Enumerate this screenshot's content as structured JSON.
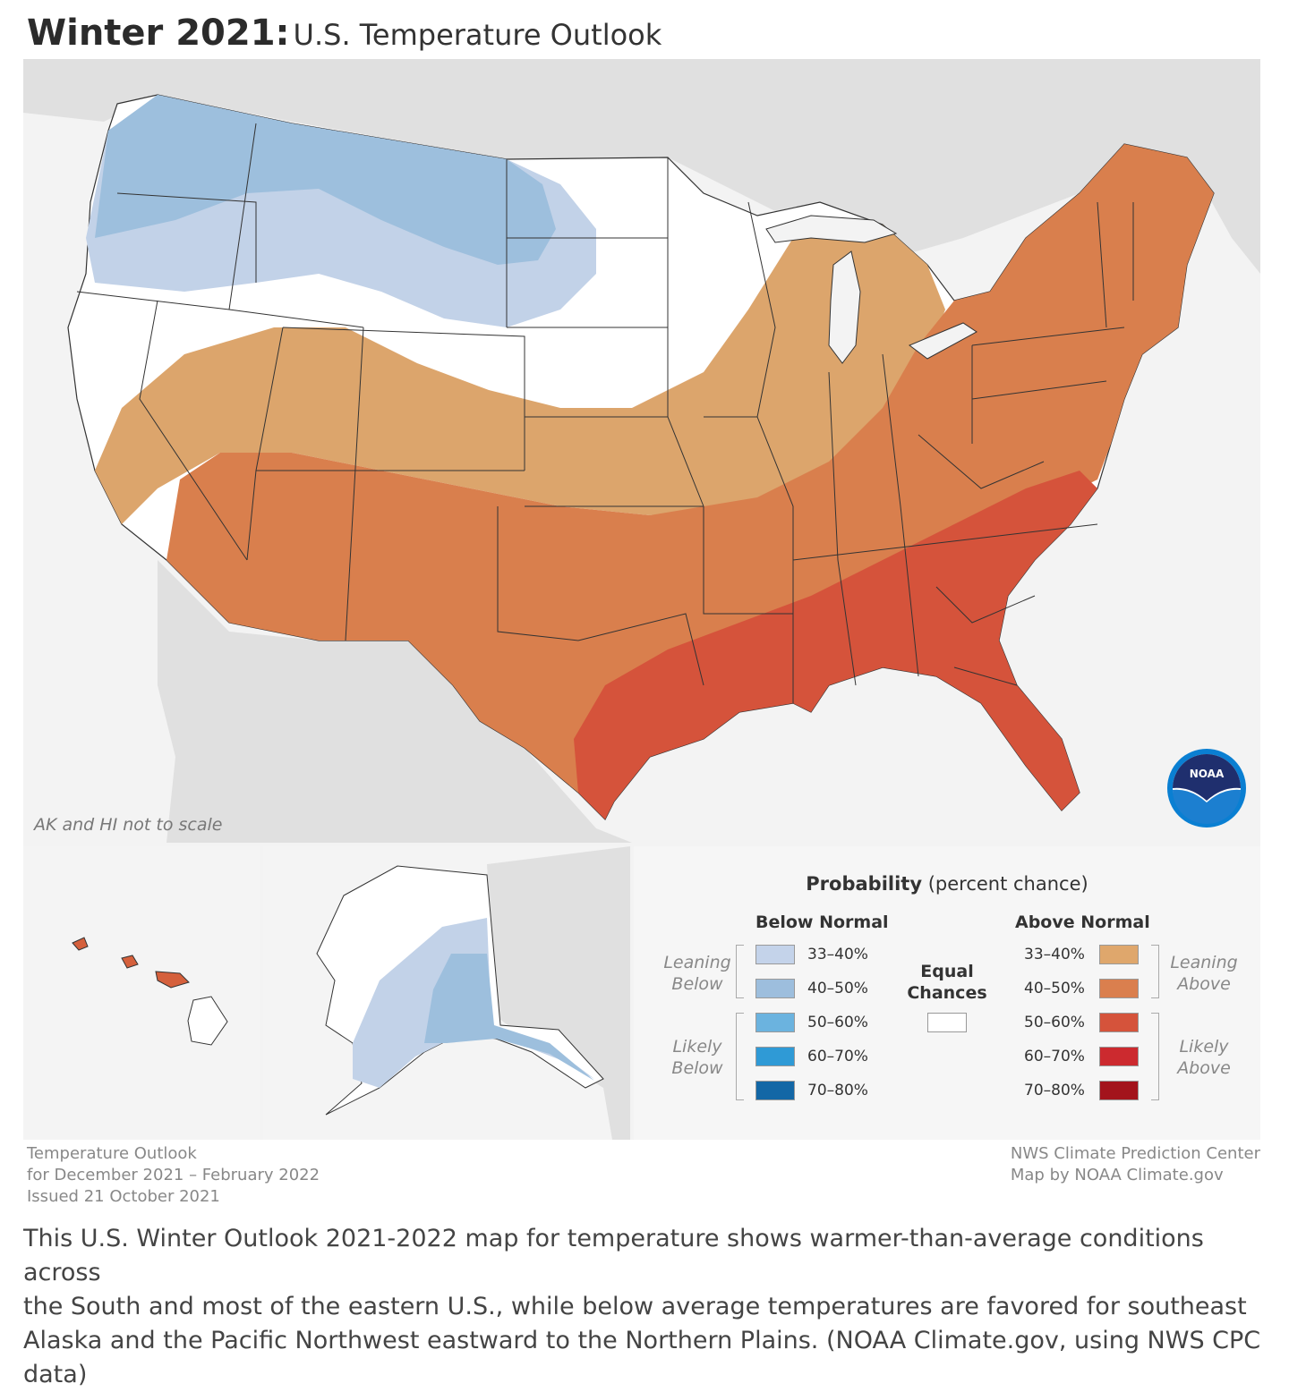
{
  "header": {
    "title_bold": "Winter 2021:",
    "title_rest": "U.S. Temperature Outlook"
  },
  "map": {
    "ak_hi_note": "AK and HI not to scale",
    "noaa_logo_text": "NOAA",
    "colors": {
      "land_outside": "#dedede",
      "water": "#f3f3f3",
      "equal_chances": "#ffffff",
      "below_33_40": "#c2d2e8",
      "below_40_50": "#9dbfdd",
      "above_33_40": "#dca56c",
      "above_40_50": "#d97f4d",
      "above_50_60": "#d5533b"
    }
  },
  "legend": {
    "title_bold": "Probability",
    "title_rest": "(percent chance)",
    "below_header": "Below Normal",
    "above_header": "Above Normal",
    "equal_label_1": "Equal",
    "equal_label_2": "Chances",
    "leaning_below_1": "Leaning",
    "leaning_below_2": "Below",
    "likely_below_1": "Likely",
    "likely_below_2": "Below",
    "leaning_above_1": "Leaning",
    "leaning_above_2": "Above",
    "likely_above_1": "Likely",
    "likely_above_2": "Above",
    "below": [
      {
        "range": "33–40%",
        "color": "#c4d3ea"
      },
      {
        "range": "40–50%",
        "color": "#9dbedd"
      },
      {
        "range": "50–60%",
        "color": "#6bb3df"
      },
      {
        "range": "60–70%",
        "color": "#2f9ad6"
      },
      {
        "range": "70–80%",
        "color": "#1367a6"
      }
    ],
    "above": [
      {
        "range": "33–40%",
        "color": "#dfa76c"
      },
      {
        "range": "40–50%",
        "color": "#da7f4e"
      },
      {
        "range": "50–60%",
        "color": "#d5533b"
      },
      {
        "range": "60–70%",
        "color": "#cc2a2f"
      },
      {
        "range": "70–80%",
        "color": "#a3141c"
      }
    ]
  },
  "footer": {
    "left_line1": "Temperature Outlook",
    "left_line2": "for December 2021 – February 2022",
    "left_line3": "Issued 21 October 2021",
    "right_line1": "NWS Climate Prediction Center",
    "right_line2": "Map by NOAA Climate.gov"
  },
  "description": {
    "line1": "This U.S. Winter Outlook 2021-2022 map for temperature shows warmer-than-average conditions across",
    "line2": "the South and most of the eastern U.S., while below average temperatures are favored for southeast",
    "line3": "Alaska and the Pacific Northwest eastward to the Northern Plains. (NOAA Climate.gov, using NWS CPC",
    "line4": "data)"
  }
}
